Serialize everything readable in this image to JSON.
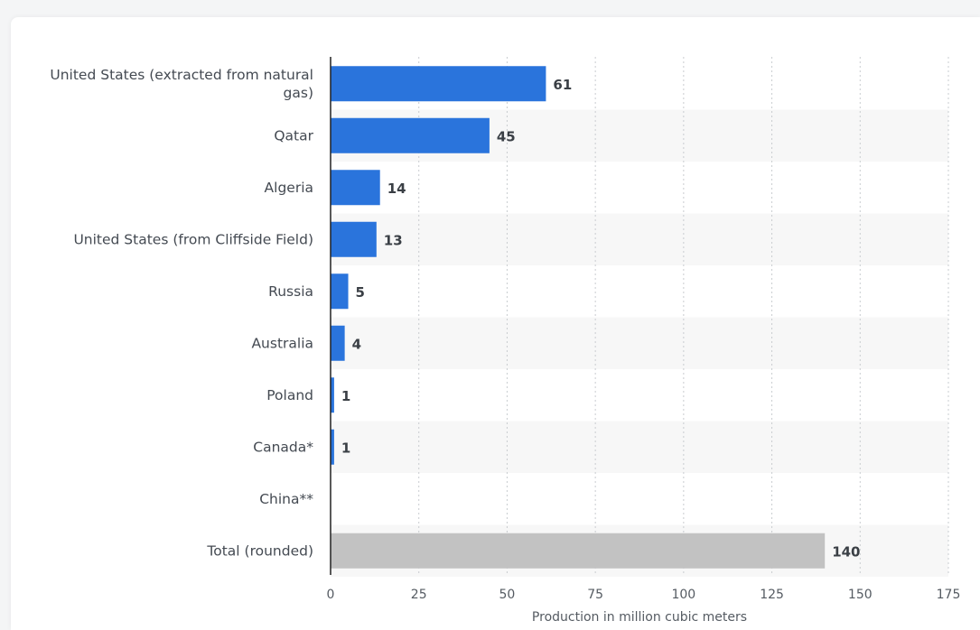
{
  "chart_data": {
    "type": "bar",
    "orientation": "horizontal",
    "categories": [
      "United States (extracted from natural gas)",
      "Qatar",
      "Algeria",
      "United States (from Cliffside Field)",
      "Russia",
      "Australia",
      "Poland",
      "Canada*",
      "China**",
      "Total (rounded)"
    ],
    "category_lines": [
      [
        "United States (extracted from natural",
        "gas)"
      ],
      [
        "Qatar"
      ],
      [
        "Algeria"
      ],
      [
        "United States (from Cliffside Field)"
      ],
      [
        "Russia"
      ],
      [
        "Australia"
      ],
      [
        "Poland"
      ],
      [
        "Canada*"
      ],
      [
        "China**"
      ],
      [
        "Total (rounded)"
      ]
    ],
    "values": [
      61,
      45,
      14,
      13,
      5,
      4,
      1,
      1,
      null,
      140
    ],
    "value_labels": [
      "61",
      "45",
      "14",
      "13",
      "5",
      "4",
      "1",
      "1",
      "",
      "140"
    ],
    "bar_colors": [
      "#2a74dc",
      "#2a74dc",
      "#2a74dc",
      "#2a74dc",
      "#2a74dc",
      "#2a74dc",
      "#2a74dc",
      "#2a74dc",
      "#2a74dc",
      "#c2c2c2"
    ],
    "xlabel": "Production in million cubic meters",
    "xlim": [
      0,
      175
    ],
    "xticks": [
      0,
      25,
      50,
      75,
      100,
      125,
      150,
      175
    ],
    "grid": "vertical dotted",
    "row_banding": "alternating light gray"
  }
}
